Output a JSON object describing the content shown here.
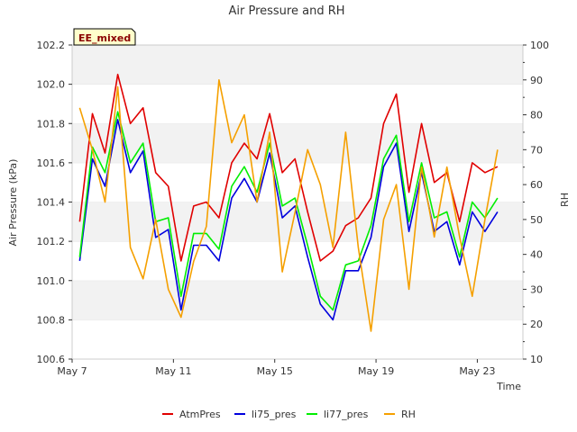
{
  "chart_data": {
    "type": "line",
    "title": "Air Pressure and RH",
    "badge": "EE_mixed",
    "xlabel": "Time",
    "ylabel": "Air Pressure (kPa)",
    "y2label": "RH",
    "xlim": [
      0,
      17.8
    ],
    "x_ticks": [
      {
        "value": 0,
        "label": "May 7"
      },
      {
        "value": 4,
        "label": "May 11"
      },
      {
        "value": 8,
        "label": "May 15"
      },
      {
        "value": 12,
        "label": "May 19"
      },
      {
        "value": 16,
        "label": "May 23"
      }
    ],
    "ylim": [
      100.6,
      102.2
    ],
    "y_ticks": [
      "100.6",
      "100.8",
      "101.0",
      "101.2",
      "101.4",
      "101.6",
      "101.8",
      "102.0",
      "102.2"
    ],
    "y2lim": [
      10,
      100
    ],
    "y2_ticks": [
      "10",
      "20",
      "30",
      "40",
      "50",
      "60",
      "70",
      "80",
      "90",
      "100"
    ],
    "legend_position": "bottom",
    "grid": "horizontal alternating bands",
    "x": [
      0.3,
      0.8,
      1.3,
      1.8,
      2.3,
      2.8,
      3.3,
      3.8,
      4.3,
      4.8,
      5.3,
      5.8,
      6.3,
      6.8,
      7.3,
      7.8,
      8.3,
      8.8,
      9.3,
      9.8,
      10.3,
      10.8,
      11.3,
      11.8,
      12.3,
      12.8,
      13.3,
      13.8,
      14.3,
      14.8,
      15.3,
      15.8,
      16.3,
      16.8
    ],
    "series": [
      {
        "name": "AtmPres",
        "axis": "left",
        "color": "#e00000",
        "values": [
          101.3,
          101.85,
          101.65,
          102.05,
          101.8,
          101.88,
          101.55,
          101.48,
          101.1,
          101.38,
          101.4,
          101.32,
          101.6,
          101.7,
          101.62,
          101.85,
          101.55,
          101.62,
          101.35,
          101.1,
          101.15,
          101.28,
          101.32,
          101.42,
          101.8,
          101.95,
          101.45,
          101.8,
          101.5,
          101.55,
          101.3,
          101.6,
          101.55,
          101.58
        ]
      },
      {
        "name": "li75_pres",
        "axis": "left",
        "color": "#0000dd",
        "values": [
          101.1,
          101.62,
          101.48,
          101.82,
          101.55,
          101.66,
          101.22,
          101.26,
          100.85,
          101.18,
          101.18,
          101.1,
          101.42,
          101.52,
          101.4,
          101.65,
          101.32,
          101.38,
          101.12,
          100.88,
          100.8,
          101.05,
          101.05,
          101.22,
          101.58,
          101.7,
          101.25,
          101.55,
          101.25,
          101.3,
          101.08,
          101.35,
          101.25,
          101.35
        ]
      },
      {
        "name": "li77_pres",
        "axis": "left",
        "color": "#00ee00",
        "values": [
          101.12,
          101.68,
          101.55,
          101.86,
          101.6,
          101.7,
          101.3,
          101.32,
          100.92,
          101.24,
          101.24,
          101.16,
          101.48,
          101.58,
          101.45,
          101.7,
          101.38,
          101.42,
          101.18,
          100.92,
          100.85,
          101.08,
          101.1,
          101.28,
          101.62,
          101.74,
          101.3,
          101.6,
          101.32,
          101.35,
          101.12,
          101.4,
          101.32,
          101.42
        ]
      },
      {
        "name": "RH",
        "axis": "right",
        "color": "#f5a000",
        "values": [
          82,
          70,
          55,
          88,
          42,
          33,
          50,
          30,
          22,
          38,
          48,
          90,
          72,
          80,
          55,
          75,
          35,
          52,
          70,
          60,
          42,
          75,
          42,
          18,
          50,
          60,
          30,
          65,
          45,
          65,
          45,
          28,
          50,
          70
        ]
      }
    ]
  }
}
